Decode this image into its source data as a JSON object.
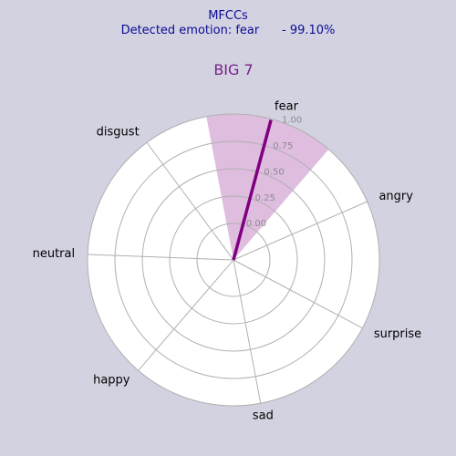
{
  "header": {
    "line1": "MFCCs",
    "line2": "Detected emotion: fear      - 99.10%"
  },
  "chart_data": {
    "type": "polar-bar",
    "title": "BIG 7",
    "categories": [
      "fear",
      "disgust",
      "neutral",
      "happy",
      "sad",
      "surprise",
      "angry"
    ],
    "values": [
      0.991,
      0,
      0,
      0,
      0,
      0,
      0
    ],
    "highlight": "fear",
    "r_ticks": [
      0.0,
      0.25,
      0.5,
      0.75,
      1.0
    ],
    "r_tick_labels": [
      "0.00",
      "0.25",
      "0.50",
      "0.75",
      "1.00"
    ],
    "rlim": [
      0,
      1
    ],
    "grid": true,
    "colors": {
      "background": "#d3d2e1",
      "plot_background": "#ffffff",
      "highlight_fill": "#dfbddf",
      "value_line": "#800080",
      "grid": "#b0b0b0",
      "header_text": "#0b0b95",
      "title_text": "#7a1f8a"
    }
  }
}
